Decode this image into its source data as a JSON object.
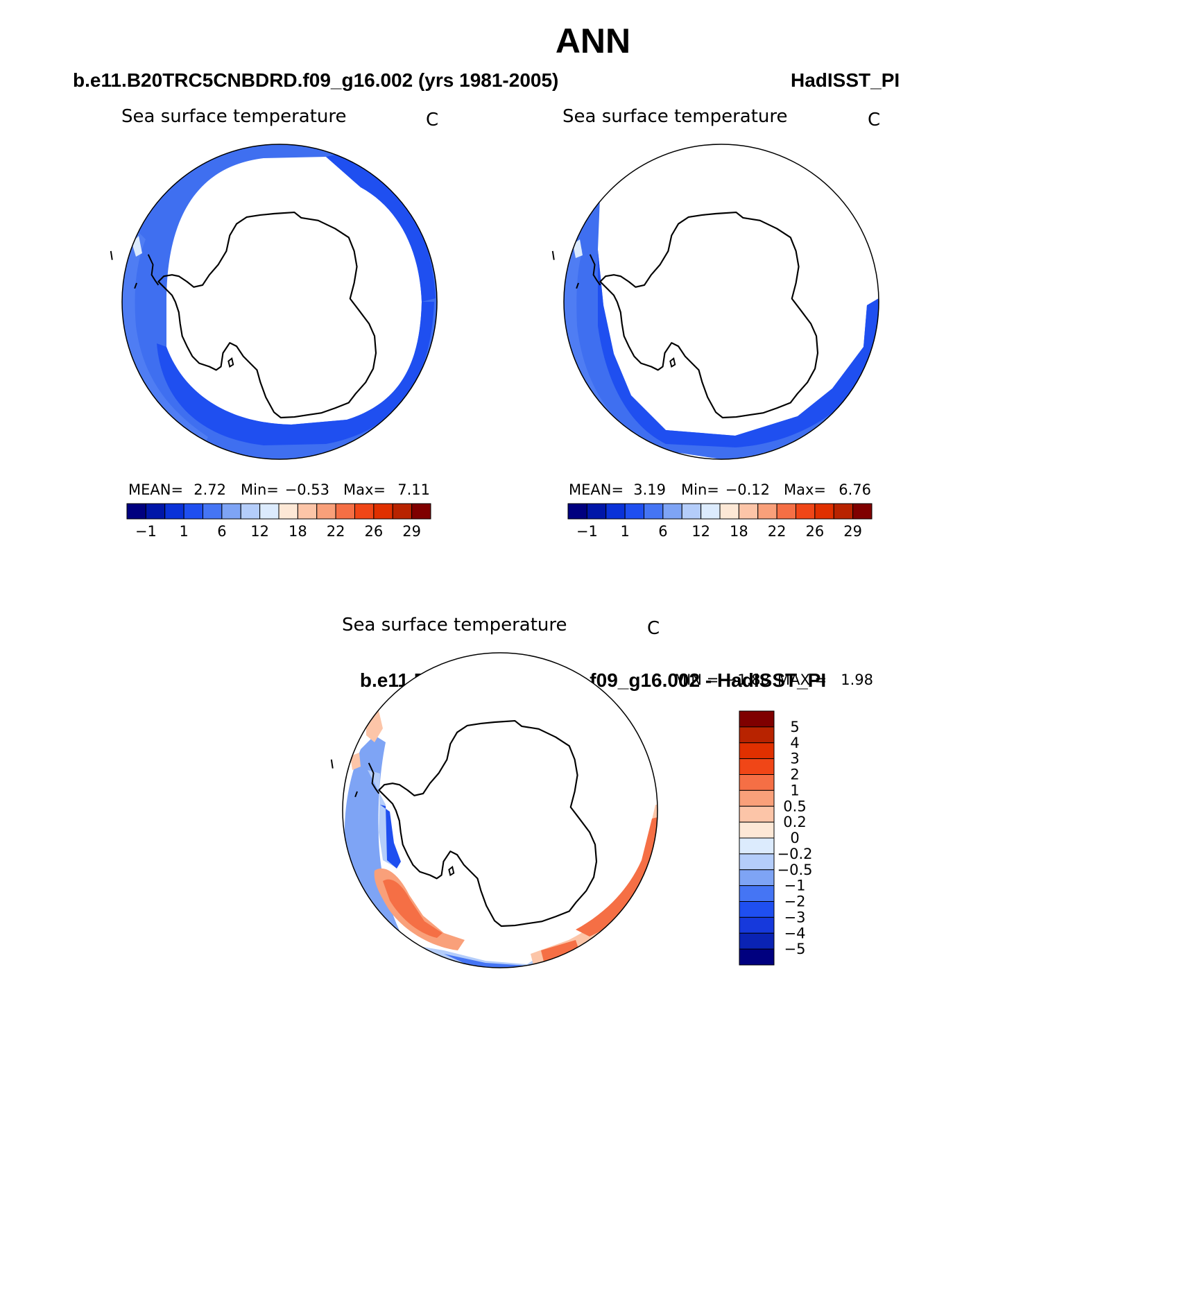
{
  "page": {
    "title": "ANN"
  },
  "panels": [
    {
      "id": "model",
      "heading": "b.e11.B20TRC5CNBDRD.f09_g16.002 (yrs 1981-2005)",
      "variable": "Sea surface temperature",
      "units": "C",
      "stats": {
        "mean_label": "MEAN=",
        "mean": "2.72",
        "min_label": "Min=",
        "min": "−0.53",
        "max_label": "Max=",
        "max": "7.11"
      }
    },
    {
      "id": "obs",
      "heading": "HadISST_PI",
      "variable": "Sea surface temperature",
      "units": "C",
      "stats": {
        "mean_label": "MEAN=",
        "mean": "3.19",
        "min_label": "Min=",
        "min": "−0.12",
        "max_label": "Max=",
        "max": "6.76"
      }
    }
  ],
  "colorbar_sst": {
    "colors": [
      "#00007f",
      "#0016a8",
      "#0a32d8",
      "#1f4ff0",
      "#4575f4",
      "#7ea4f5",
      "#b4cdfa",
      "#dcebfd",
      "#fde8d6",
      "#fcc5a8",
      "#f9a07a",
      "#f56f45",
      "#f04617",
      "#e03000",
      "#b82300",
      "#7f0000"
    ],
    "tick_labels": [
      "−1",
      "1",
      "6",
      "12",
      "18",
      "22",
      "26",
      "29"
    ]
  },
  "difference": {
    "heading": "b.e11.B20TRC5CNBDRD.f09_g16.002 - HadISST_PI",
    "variable": "Sea surface temperature",
    "units": "C",
    "stats": {
      "min_label": "MIN =",
      "min": "−1.88",
      "max_label": "MAX =",
      "max": "1.98"
    },
    "colorbar": {
      "colors": [
        "#00007f",
        "#0a23b4",
        "#1639dc",
        "#1f4ff0",
        "#4575f4",
        "#7ea4f5",
        "#b4cdfa",
        "#dcebfd",
        "#fde8d6",
        "#fcc5a8",
        "#f9a07a",
        "#f56f45",
        "#f04617",
        "#e03000",
        "#b82300",
        "#7f0000"
      ],
      "tick_labels": [
        "−5",
        "−4",
        "−3",
        "−2",
        "−1",
        "−0.5",
        "−0.2",
        "0",
        "0.2",
        "0.5",
        "1",
        "2",
        "3",
        "4",
        "5"
      ]
    }
  }
}
